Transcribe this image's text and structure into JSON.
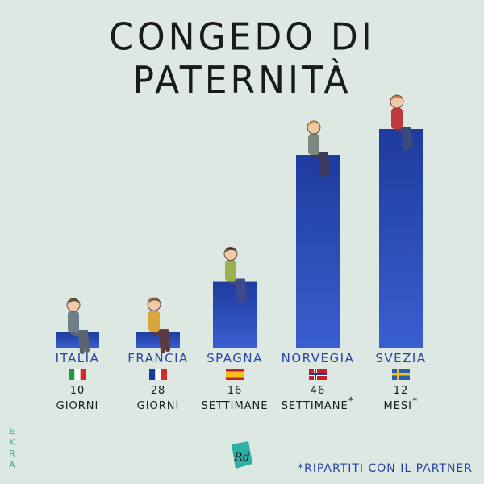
{
  "chart_data": {
    "type": "bar",
    "title": "CONGEDO DI PATERNITÀ",
    "categories": [
      "ITALIA",
      "FRANCIA",
      "SPAGNA",
      "NORVEGIA",
      "SVEZIA"
    ],
    "values": [
      10,
      28,
      112,
      322,
      365
    ],
    "value_unit": "giorni",
    "labels": [
      {
        "number": "10",
        "unit": "GIORNI",
        "star": ""
      },
      {
        "number": "28",
        "unit": "GIORNI",
        "star": ""
      },
      {
        "number": "16",
        "unit": "SETTIMANE",
        "star": ""
      },
      {
        "number": "46",
        "unit": "SETTIMANE",
        "star": "*"
      },
      {
        "number": "12",
        "unit": "MESI",
        "star": "*"
      }
    ],
    "flags": [
      "italy-flag",
      "france-flag",
      "spain-flag",
      "norway-flag",
      "sweden-flag"
    ],
    "bar_color": "#1e3b9e",
    "bar_gradient_end": "#3a5fd0",
    "grid": false
  },
  "colors": {
    "background": "#dde8e2",
    "label_blue": "#2643a8",
    "signature_teal": "#4aa7a8"
  },
  "footnote": "*RIPARTITI CON IL PARTNER",
  "signature": "EKRA",
  "logo_text": "Rd"
}
